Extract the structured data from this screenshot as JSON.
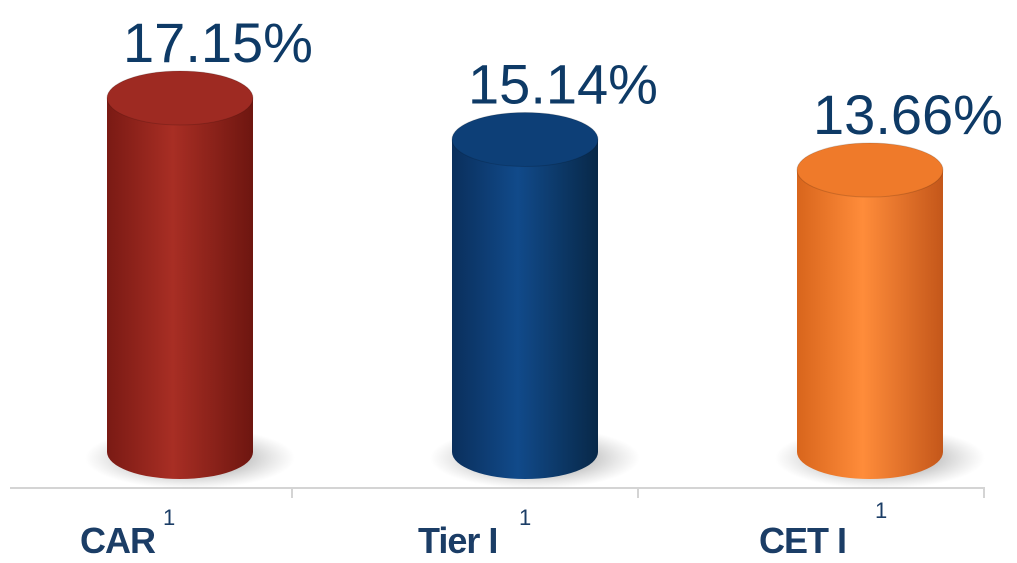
{
  "chart_data": {
    "type": "bar",
    "categories": [
      "CAR",
      "Tier I",
      "CET I"
    ],
    "footnote_marks": [
      "1",
      "1",
      "1"
    ],
    "values": [
      17.15,
      15.14,
      13.66
    ],
    "value_labels": [
      "17.15%",
      "15.14%",
      "13.66%"
    ],
    "colors": [
      "#9e2a22",
      "#0d3f77",
      "#ef7a2a"
    ],
    "ylim": [
      0,
      20
    ],
    "grid": false,
    "legend": "none",
    "title": "",
    "xlabel": "",
    "ylabel": ""
  }
}
